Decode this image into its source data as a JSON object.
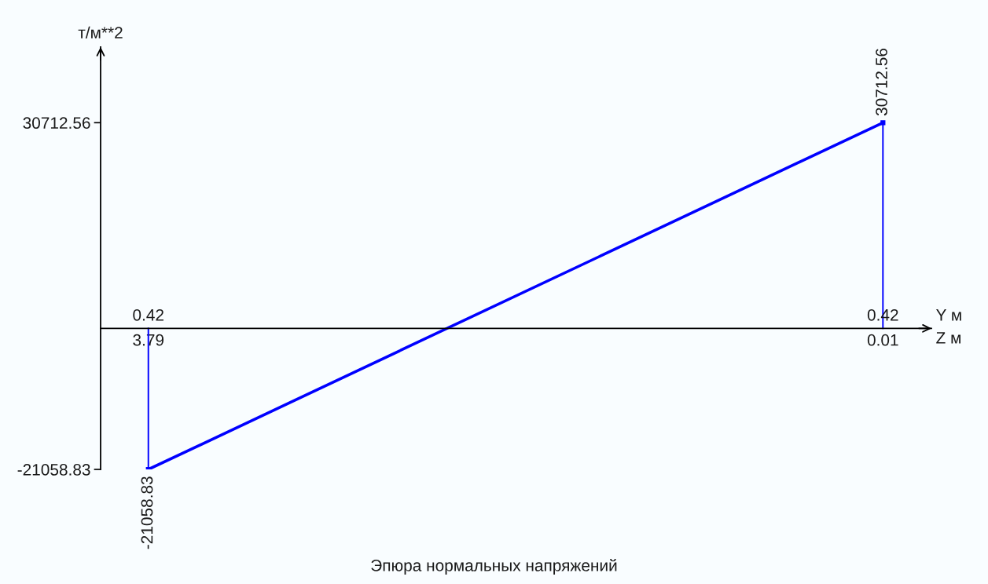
{
  "chart_data": {
    "type": "line",
    "title": "Эпюра нормальных напряжений",
    "xlabel": "Z м",
    "ylabel": "т/м**2",
    "categories": [
      "3.79",
      "0.01"
    ],
    "series": [
      {
        "type": "lollipop",
        "color": "#0000ff",
        "values": [
          -21058.83,
          30712.56
        ],
        "marker": "square"
      },
      {
        "color": "#0000ff",
        "values": [
          -21058.83,
          30712.56
        ],
        "value_labels": [
          "-21058.83",
          "30712.56"
        ]
      }
    ],
    "ylim": [
      -21058.83,
      42000
    ],
    "yticks": [
      30712.56,
      -21058.83
    ],
    "annotations": [
      "0.42",
      "0.42",
      "Y м"
    ]
  }
}
